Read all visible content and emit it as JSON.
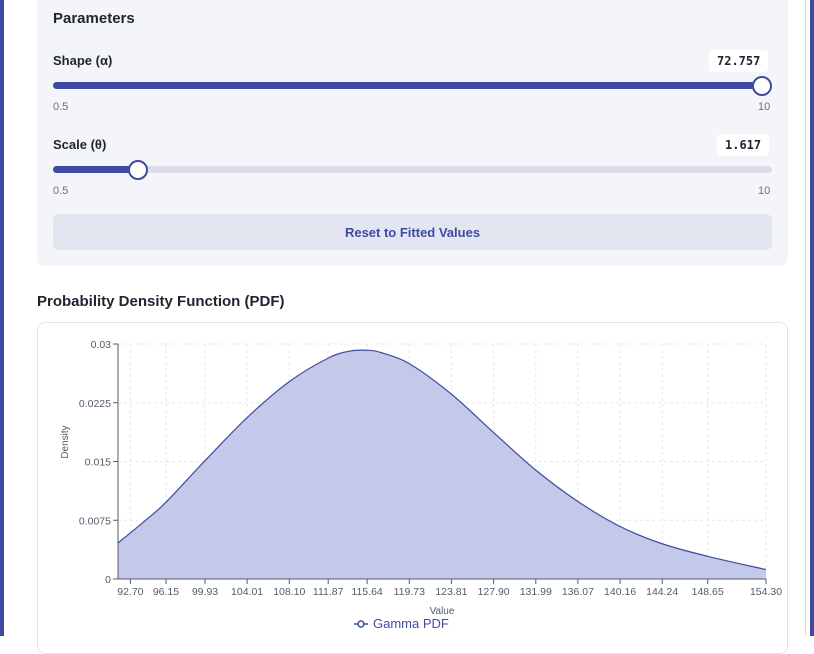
{
  "parameters": {
    "title": "Parameters",
    "shape": {
      "label": "Shape (α)",
      "value": "72.757",
      "min": "0.5",
      "max": "10",
      "fraction": 1.0
    },
    "scale": {
      "label": "Scale (θ)",
      "value": "1.617",
      "min": "0.5",
      "max": "10",
      "fraction": 0.1176
    },
    "reset_label": "Reset to Fitted Values"
  },
  "pdf_section": {
    "title": "Probability Density Function (PDF)"
  },
  "chart_data": {
    "type": "area",
    "title": "",
    "xlabel": "Value",
    "ylabel": "Density",
    "legend": {
      "label": "Gamma PDF",
      "placement": "bottom"
    },
    "x_ticks": [
      "92.70",
      "96.15",
      "99.93",
      "104.01",
      "108.10",
      "111.87",
      "115.64",
      "119.73",
      "123.81",
      "127.90",
      "131.99",
      "136.07",
      "140.16",
      "144.24",
      "148.65",
      "154.30"
    ],
    "y_ticks": [
      "0",
      "0.0075",
      "0.015",
      "0.0225",
      "0.03"
    ],
    "xlim": [
      91.5,
      154.3
    ],
    "ylim": [
      0,
      0.03
    ],
    "grid": true,
    "series": [
      {
        "name": "Gamma PDF",
        "color": "#3f4aa3",
        "fill": "#c5c9e9",
        "x": [
          91.5,
          94,
          96.15,
          99.93,
          104.01,
          108.1,
          111.87,
          114,
          115.64,
          117,
          119.73,
          123.81,
          127.9,
          131.99,
          136.07,
          140.16,
          144.24,
          148.65,
          154.3
        ],
        "y": [
          0.0046,
          0.0073,
          0.0098,
          0.0151,
          0.0206,
          0.0252,
          0.0282,
          0.0291,
          0.0292,
          0.0289,
          0.0275,
          0.0236,
          0.0187,
          0.0139,
          0.0099,
          0.0067,
          0.0045,
          0.0029,
          0.0012
        ]
      }
    ]
  }
}
